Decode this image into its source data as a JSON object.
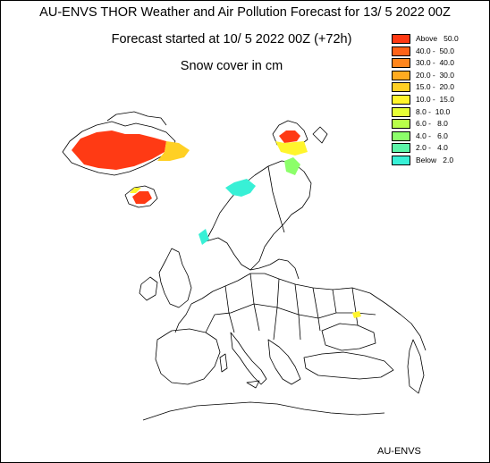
{
  "header": {
    "title": "AU-ENVS THOR Weather and Air Pollution Forecast for 13/ 5 2022  00Z",
    "forecast_start": "Forecast started at 10/ 5 2022  00Z (+72h)",
    "variable": "Snow cover in cm"
  },
  "legend": {
    "items": [
      {
        "label": "Above   50.0",
        "color": "#ff3a14"
      },
      {
        "label": "40.0 -  50.0",
        "color": "#ff6318"
      },
      {
        "label": "30.0 -  40.0",
        "color": "#ff861c"
      },
      {
        "label": "20.0 -  30.0",
        "color": "#ffab20"
      },
      {
        "label": "15.0 -  20.0",
        "color": "#ffd024"
      },
      {
        "label": "10.0 -  15.0",
        "color": "#fff52c"
      },
      {
        "label": "8.0 -  10.0",
        "color": "#e6ff35"
      },
      {
        "label": "6.0 -   8.0",
        "color": "#b8ff4a"
      },
      {
        "label": "4.0 -   6.0",
        "color": "#8cff6a"
      },
      {
        "label": "2.0 -   4.0",
        "color": "#5cf5a8"
      },
      {
        "label": "Below   2.0",
        "color": "#38f0d6"
      }
    ]
  },
  "credit": "AU-ENVS",
  "map": {
    "region": "Europe",
    "snow_areas": [
      {
        "name": "Greenland",
        "level": "Above 50.0"
      },
      {
        "name": "Iceland",
        "level": "Above 50.0"
      },
      {
        "name": "Svalbard",
        "level": "Above 50.0"
      },
      {
        "name": "Scandinavian mountains",
        "level": "Below 2.0"
      },
      {
        "name": "Caucasus",
        "level": "10.0 - 15.0"
      }
    ]
  }
}
